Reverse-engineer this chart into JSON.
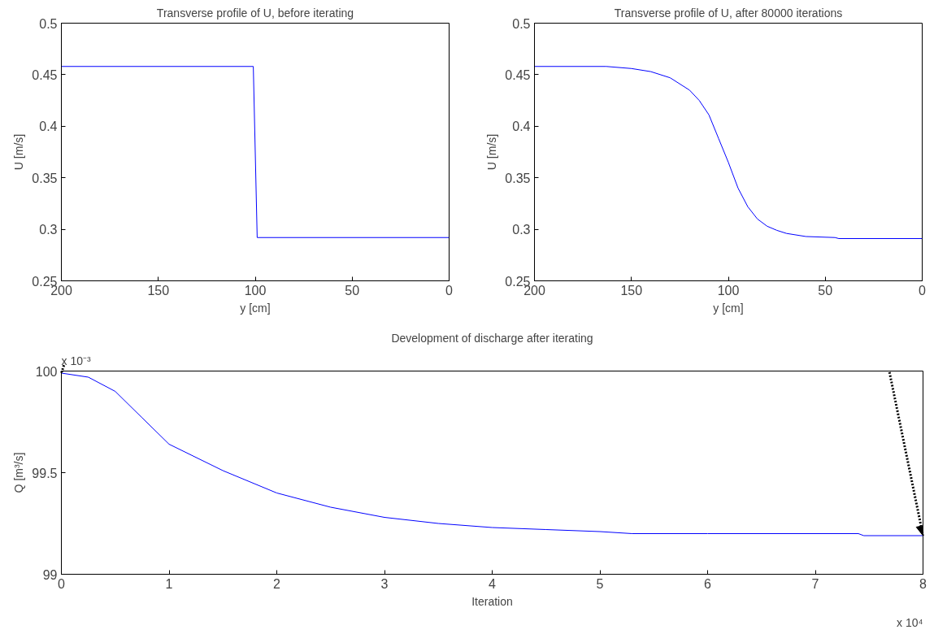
{
  "chart_data": [
    {
      "type": "line",
      "title": "Transverse profile of U, before iterating",
      "xlabel": "y [cm]",
      "ylabel": "U [m/s]",
      "x": [
        200,
        101,
        99,
        0
      ],
      "series": [
        {
          "color": "#0000ff",
          "values": [
            0.458,
            0.458,
            0.292,
            0.292
          ]
        }
      ],
      "xlim": [
        200,
        0
      ],
      "xticks": [
        200,
        150,
        100,
        50,
        0
      ],
      "ylim": [
        0.25,
        0.5
      ],
      "yticks": [
        0.25,
        0.3,
        0.35,
        0.4,
        0.45,
        0.5
      ],
      "grid": false
    },
    {
      "type": "line",
      "title": "Transverse profile of U, after 80000 iterations",
      "xlabel": "y [cm]",
      "ylabel": "U [m/s]",
      "x": [
        200,
        163,
        150,
        140,
        130,
        120,
        115,
        110,
        105,
        100,
        95,
        90,
        85,
        80,
        75,
        70,
        60,
        45,
        43,
        0
      ],
      "series": [
        {
          "color": "#0000ff",
          "values": [
            0.458,
            0.458,
            0.456,
            0.453,
            0.447,
            0.435,
            0.425,
            0.411,
            0.388,
            0.365,
            0.34,
            0.322,
            0.31,
            0.303,
            0.299,
            0.296,
            0.293,
            0.292,
            0.291,
            0.291
          ]
        }
      ],
      "xlim": [
        200,
        0
      ],
      "xticks": [
        200,
        150,
        100,
        50,
        0
      ],
      "ylim": [
        0.25,
        0.5
      ],
      "yticks": [
        0.25,
        0.3,
        0.35,
        0.4,
        0.45,
        0.5
      ],
      "grid": false
    },
    {
      "type": "line",
      "title": "Development of discharge after iterating",
      "xlabel": "Iteration",
      "ylabel": "Q [m³/s]",
      "x": [
        0,
        0.25,
        0.5,
        0.75,
        1,
        1.5,
        2,
        2.5,
        3,
        3.5,
        4,
        4.5,
        5,
        5.3,
        6,
        7.4,
        7.45,
        8
      ],
      "series": [
        {
          "color": "#0000ff",
          "values": [
            99.99,
            99.97,
            99.9,
            99.77,
            99.64,
            99.51,
            99.4,
            99.33,
            99.28,
            99.25,
            99.23,
            99.22,
            99.21,
            99.2,
            99.2,
            99.2,
            99.19,
            99.19
          ]
        }
      ],
      "xlim": [
        0,
        8
      ],
      "xticks": [
        0,
        1,
        2,
        3,
        4,
        5,
        6,
        7,
        8
      ],
      "ylim": [
        99,
        100
      ],
      "yticks": [
        99,
        99.5,
        100
      ],
      "grid": false,
      "annotations": [
        "x 10⁻³",
        "x 10⁴"
      ]
    }
  ]
}
